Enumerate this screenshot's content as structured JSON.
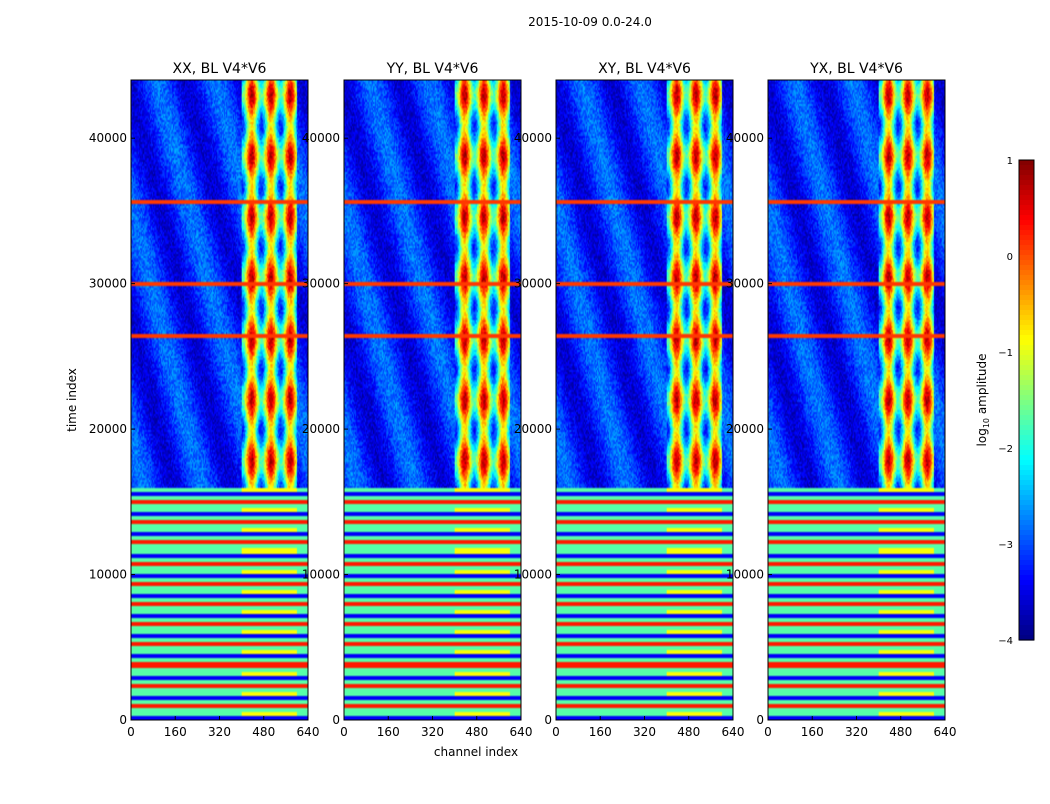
{
  "chart_data": {
    "type": "heatmap",
    "suptitle": "2015-10-09 0.0-24.0",
    "xlabel": "channel index",
    "ylabel": "time index",
    "xlim": [
      0,
      640
    ],
    "ylim": [
      0,
      44000
    ],
    "xticks": [
      0,
      160,
      320,
      480,
      640
    ],
    "yticks": [
      0,
      10000,
      20000,
      30000,
      40000
    ],
    "xtick_labels": [
      "0",
      "160",
      "320",
      "480",
      "640"
    ],
    "ytick_labels": [
      "0",
      "10000",
      "20000",
      "30000",
      "40000"
    ],
    "panels": [
      {
        "title": "XX, BL V4*V6"
      },
      {
        "title": "YY, BL V4*V6"
      },
      {
        "title": "XY, BL V4*V6"
      },
      {
        "title": "YX, BL V4*V6"
      }
    ],
    "colorbar": {
      "label": "log10 amplitude",
      "label_main": "log",
      "label_sub": "10",
      "label_rest": " amplitude",
      "range": [
        -4,
        1
      ],
      "ticks": [
        1,
        0,
        -1,
        -2,
        -3,
        -4
      ],
      "tick_labels": [
        "1",
        "0",
        "−1",
        "−2",
        "−3",
        "−4"
      ],
      "colormap": "jet"
    },
    "features": {
      "bright_channel_band": [
        400,
        600
      ],
      "flagged_time_rows": [
        26400,
        30000,
        35600
      ],
      "sparse_time_region": [
        0,
        16000
      ]
    }
  }
}
